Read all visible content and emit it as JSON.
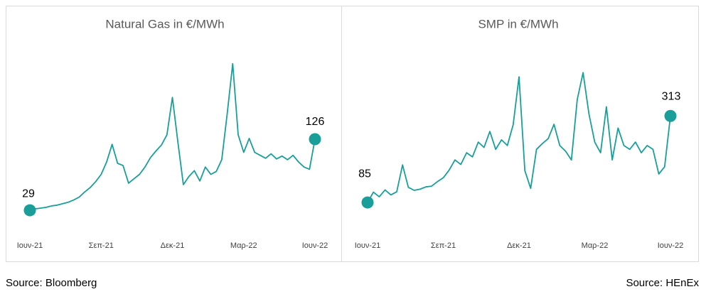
{
  "chart_data": [
    {
      "type": "line",
      "title": "Natural Gas in €/MWh",
      "source": "Source: Bloomberg",
      "categories": [
        "Ιουν-21",
        null,
        null,
        null,
        null,
        null,
        null,
        null,
        null,
        null,
        null,
        null,
        null,
        "Σεπ-21",
        null,
        null,
        null,
        null,
        null,
        null,
        null,
        null,
        null,
        null,
        null,
        null,
        "Δεκ-21",
        null,
        null,
        null,
        null,
        null,
        null,
        null,
        null,
        null,
        null,
        null,
        null,
        "Μαρ-22",
        null,
        null,
        null,
        null,
        null,
        null,
        null,
        null,
        null,
        null,
        null,
        null,
        "Ιουν-22"
      ],
      "values": [
        29,
        31,
        32,
        33,
        35,
        36,
        38,
        40,
        43,
        47,
        54,
        60,
        68,
        78,
        95,
        119,
        93,
        90,
        66,
        72,
        78,
        88,
        101,
        110,
        118,
        132,
        183,
        122,
        64,
        75,
        83,
        69,
        88,
        78,
        82,
        98,
        161,
        229,
        132,
        108,
        127,
        108,
        104,
        100,
        106,
        99,
        103,
        98,
        104,
        95,
        88,
        85,
        126
      ],
      "color": "#1a9e99",
      "ylim": [
        0,
        250
      ]
    },
    {
      "type": "line",
      "title": "SMP in €/MWh",
      "source": "Source: HEnEx",
      "categories": [
        "Ιουν-21",
        null,
        null,
        null,
        null,
        null,
        null,
        null,
        null,
        null,
        null,
        null,
        null,
        "Σεπ-21",
        null,
        null,
        null,
        null,
        null,
        null,
        null,
        null,
        null,
        null,
        null,
        null,
        "Δεκ-21",
        null,
        null,
        null,
        null,
        null,
        null,
        null,
        null,
        null,
        null,
        null,
        null,
        "Μαρ-22",
        null,
        null,
        null,
        null,
        null,
        null,
        null,
        null,
        null,
        null,
        null,
        null,
        "Ιουν-22"
      ],
      "values": [
        85,
        112,
        100,
        118,
        105,
        113,
        184,
        125,
        117,
        120,
        126,
        128,
        140,
        150,
        170,
        197,
        185,
        216,
        205,
        244,
        230,
        272,
        225,
        250,
        235,
        290,
        416,
        169,
        122,
        225,
        240,
        253,
        291,
        235,
        220,
        197,
        356,
        427,
        319,
        244,
        216,
        337,
        197,
        281,
        235,
        225,
        244,
        216,
        235,
        225,
        160,
        179,
        313
      ],
      "color": "#1a9e99",
      "ylim": [
        0,
        450
      ]
    }
  ]
}
